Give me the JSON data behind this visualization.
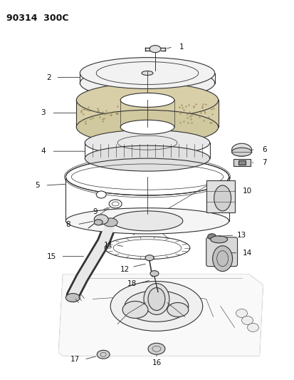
{
  "title": "90314  300C",
  "bg_color": "#ffffff",
  "line_color": "#333333",
  "label_color": "#111111",
  "label_fontsize": 7.5,
  "figsize": [
    4.14,
    5.33
  ],
  "dpi": 100
}
